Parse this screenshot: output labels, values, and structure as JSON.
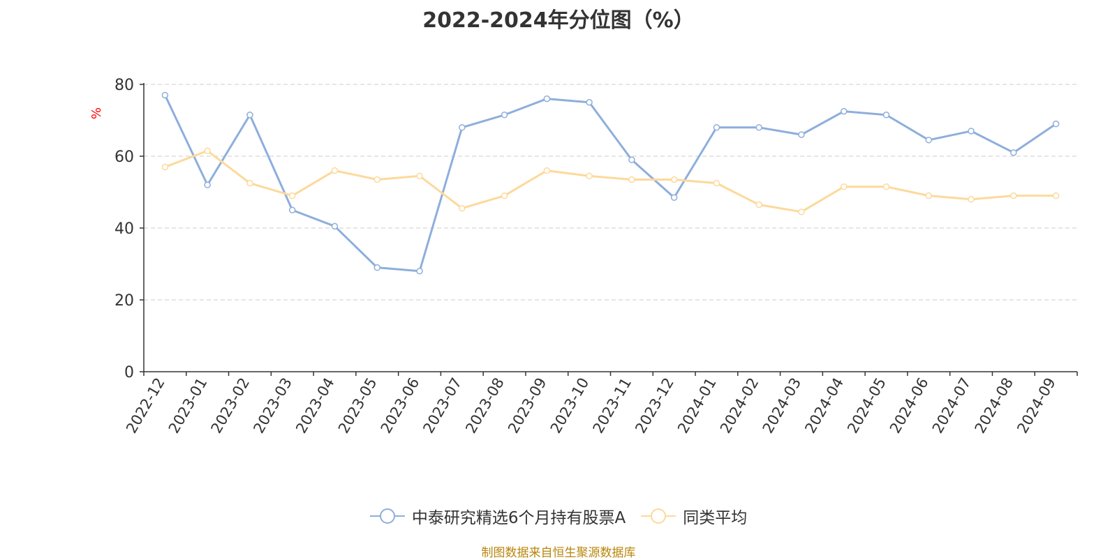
{
  "title": "2022-2024年分位图（%）",
  "y_unit_label": "%",
  "source_note": "制图数据来自恒生聚源数据库",
  "colors": {
    "series_0": "#8eaedc",
    "series_1": "#fdd99b",
    "axis": "#333333",
    "grid": "#cccccc",
    "unit_label": "#ff0000",
    "source": "#b8860b"
  },
  "chart_data": {
    "type": "line",
    "title": "2022-2024年分位图（%）",
    "xlabel": "",
    "ylabel": "%",
    "ylim": [
      0,
      80
    ],
    "yticks": [
      0,
      20,
      40,
      60,
      80
    ],
    "grid": true,
    "legend_position": "bottom",
    "categories": [
      "2022-12",
      "2023-01",
      "2023-02",
      "2023-03",
      "2023-04",
      "2023-05",
      "2023-06",
      "2023-07",
      "2023-08",
      "2023-09",
      "2023-10",
      "2023-11",
      "2023-12",
      "2024-01",
      "2024-02",
      "2024-03",
      "2024-04",
      "2024-05",
      "2024-06",
      "2024-07",
      "2024-08",
      "2024-09"
    ],
    "series": [
      {
        "name": "中泰研究精选6个月持有股票A",
        "values": [
          77,
          52,
          71.5,
          45,
          40.5,
          29,
          28,
          68,
          71.5,
          76,
          75,
          59,
          48.5,
          68,
          68,
          66,
          72.5,
          71.5,
          64.5,
          67,
          61,
          69
        ]
      },
      {
        "name": "同类平均",
        "values": [
          57,
          61.5,
          52.5,
          49,
          56,
          53.5,
          54.5,
          45.5,
          49,
          56,
          54.5,
          53.5,
          53.5,
          52.5,
          46.5,
          44.5,
          51.5,
          51.5,
          49,
          48,
          49,
          49
        ]
      }
    ]
  }
}
